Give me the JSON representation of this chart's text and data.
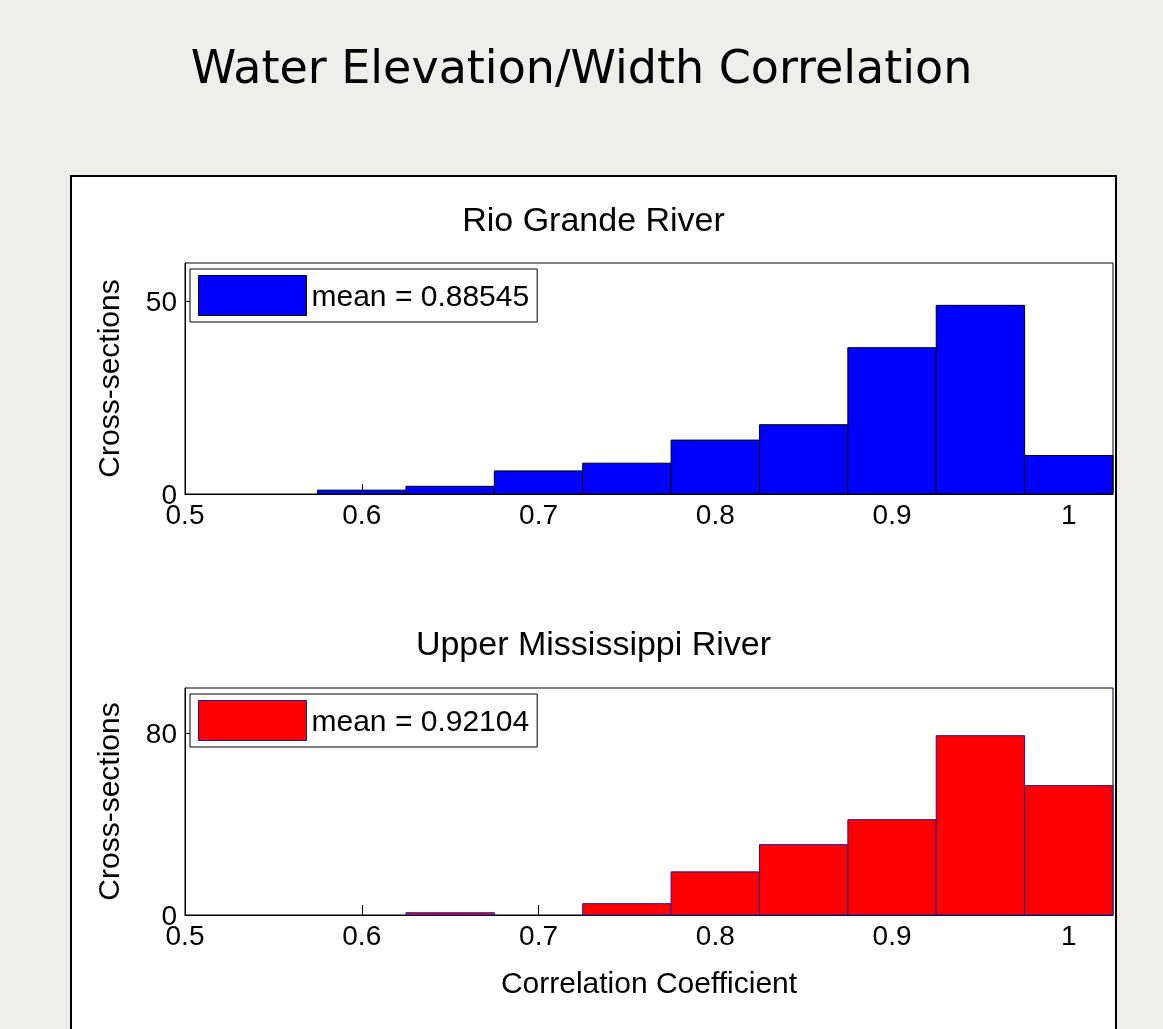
{
  "chart_data": [
    {
      "type": "histogram",
      "title": "Rio Grande River",
      "ylabel": "Cross-sections",
      "annotations": [
        "Water Elevation/Width Correlation"
      ],
      "bins": [
        0.575,
        0.625,
        0.675,
        0.725,
        0.775,
        0.825,
        0.875,
        0.925,
        0.975,
        1.025
      ],
      "series": [
        {
          "name": "mean = 0.88545",
          "color": "#0000ff",
          "values": [
            1,
            2,
            6,
            8,
            14,
            18,
            38,
            49,
            10
          ]
        }
      ],
      "xlim": [
        0.5,
        1.025
      ],
      "xticks": [
        0.5,
        0.6,
        0.7,
        0.8,
        0.9,
        1
      ],
      "ylim": [
        0,
        60
      ],
      "yticks": [
        0,
        50
      ],
      "grid": false,
      "legend": "top left"
    },
    {
      "type": "histogram",
      "title": "Upper Mississippi River",
      "xlabel": "Correlation Coefficient",
      "ylabel": "Cross-sections",
      "bins": [
        0.625,
        0.675,
        0.725,
        0.775,
        0.825,
        0.875,
        0.925,
        0.975,
        1.025
      ],
      "series": [
        {
          "name": "mean = 0.92104",
          "color": "#ff0000",
          "values": [
            1,
            0,
            5,
            19,
            31,
            42,
            79,
            57
          ]
        }
      ],
      "xlim": [
        0.5,
        1.025
      ],
      "xticks": [
        0.5,
        0.6,
        0.7,
        0.8,
        0.9,
        1
      ],
      "ylim": [
        0,
        100
      ],
      "yticks": [
        0,
        80
      ],
      "grid": false,
      "legend": "top left"
    }
  ]
}
